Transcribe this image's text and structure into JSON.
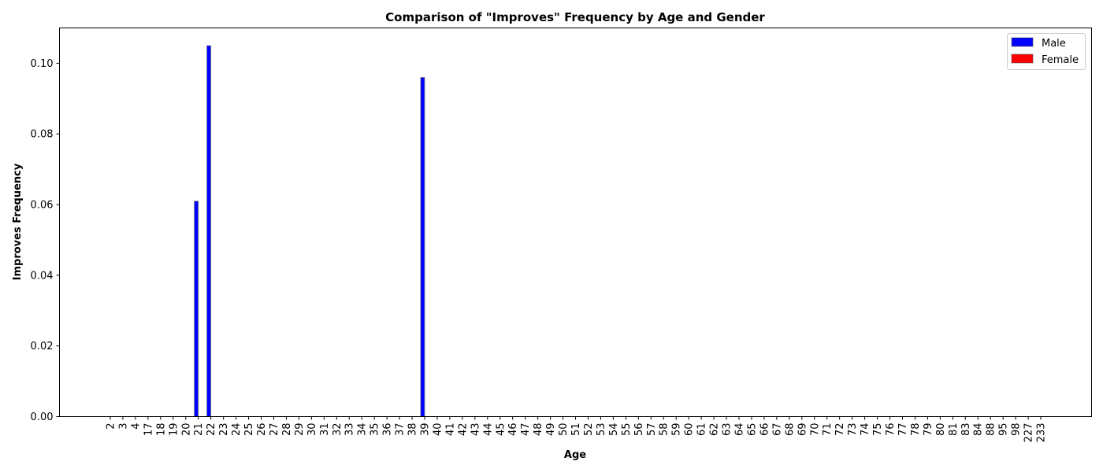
{
  "chart_data": {
    "type": "bar",
    "title": "Comparison of \"Improves\" Frequency by Age and Gender",
    "xlabel": "Age",
    "ylabel": "Improves Frequency",
    "ylim": [
      0,
      0.11
    ],
    "yticks": [
      "0.00",
      "0.02",
      "0.04",
      "0.06",
      "0.08",
      "0.10"
    ],
    "categories": [
      "2",
      "3",
      "4",
      "17",
      "18",
      "19",
      "20",
      "21",
      "22",
      "23",
      "24",
      "25",
      "26",
      "27",
      "28",
      "29",
      "30",
      "31",
      "32",
      "33",
      "34",
      "35",
      "36",
      "37",
      "38",
      "39",
      "40",
      "41",
      "42",
      "43",
      "44",
      "45",
      "46",
      "47",
      "48",
      "49",
      "50",
      "51",
      "52",
      "53",
      "54",
      "55",
      "56",
      "57",
      "58",
      "59",
      "60",
      "61",
      "62",
      "63",
      "64",
      "65",
      "66",
      "67",
      "68",
      "69",
      "70",
      "71",
      "72",
      "73",
      "74",
      "75",
      "76",
      "77",
      "78",
      "79",
      "80",
      "81",
      "83",
      "84",
      "88",
      "95",
      "98",
      "227",
      "233"
    ],
    "series": [
      {
        "name": "Male",
        "color": "#0000ff",
        "values": [
          0,
          0,
          0,
          0,
          0,
          0,
          0,
          0.061,
          0.105,
          0,
          0,
          0,
          0,
          0,
          0,
          0,
          0,
          0,
          0,
          0,
          0,
          0,
          0,
          0,
          0,
          0.096,
          0,
          0,
          0,
          0,
          0,
          0,
          0,
          0,
          0,
          0,
          0,
          0,
          0,
          0,
          0,
          0,
          0,
          0,
          0,
          0,
          0,
          0,
          0,
          0,
          0,
          0,
          0,
          0,
          0,
          0,
          0,
          0,
          0,
          0,
          0,
          0,
          0,
          0,
          0,
          0,
          0,
          0,
          0,
          0,
          0,
          0,
          0,
          0,
          0
        ]
      },
      {
        "name": "Female",
        "color": "#ff0000",
        "values": [
          0,
          0,
          0,
          0,
          0,
          0,
          0,
          0,
          0,
          0,
          0,
          0,
          0,
          0,
          0,
          0,
          0,
          0,
          0,
          0,
          0,
          0,
          0,
          0,
          0,
          0,
          0,
          0,
          0,
          0,
          0,
          0,
          0,
          0,
          0,
          0,
          0,
          0,
          0,
          0,
          0,
          0,
          0,
          0,
          0,
          0,
          0,
          0,
          0,
          0,
          0,
          0,
          0,
          0,
          0,
          0,
          0,
          0,
          0,
          0,
          0,
          0,
          0,
          0,
          0,
          0,
          0,
          0,
          0,
          0,
          0,
          0,
          0,
          0,
          0
        ]
      }
    ],
    "grid": false,
    "legend_position": "top-right"
  }
}
